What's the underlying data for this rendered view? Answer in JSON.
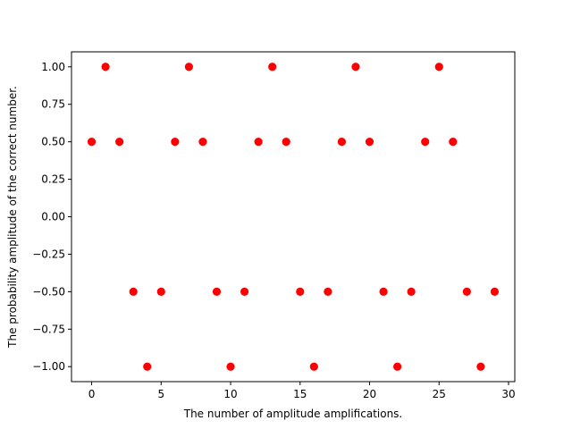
{
  "chart_data": {
    "type": "scatter",
    "title": "",
    "xlabel": "The number of amplitude amplifications.",
    "ylabel": "The probability amplitude of the correct number.",
    "xlim": [
      -1.45,
      30.45
    ],
    "ylim": [
      -1.1,
      1.1
    ],
    "x_ticks": [
      0,
      5,
      10,
      15,
      20,
      25,
      30
    ],
    "x_tick_labels": [
      "0",
      "5",
      "10",
      "15",
      "20",
      "25",
      "30"
    ],
    "y_ticks": [
      1.0,
      0.75,
      0.5,
      0.25,
      0.0,
      -0.25,
      -0.5,
      -0.75,
      -1.0
    ],
    "y_tick_labels": [
      "1.00",
      "0.75",
      "0.50",
      "0.25",
      "0.00",
      "−0.25",
      "−0.50",
      "−0.75",
      "−1.00"
    ],
    "grid": false,
    "marker_color": "#ff0000",
    "series": [
      {
        "x": [
          0,
          1,
          2,
          3,
          4,
          5,
          6,
          7,
          8,
          9,
          10,
          11,
          12,
          13,
          14,
          15,
          16,
          17,
          18,
          19,
          20,
          21,
          22,
          23,
          24,
          25,
          26,
          27,
          28,
          29
        ],
        "y": [
          0.5,
          1.0,
          0.5,
          -0.5,
          -1.0,
          -0.5,
          0.5,
          1.0,
          0.5,
          -0.5,
          -1.0,
          -0.5,
          0.5,
          1.0,
          0.5,
          -0.5,
          -1.0,
          -0.5,
          0.5,
          1.0,
          0.5,
          -0.5,
          -1.0,
          -0.5,
          0.5,
          1.0,
          0.5,
          -0.5,
          -1.0,
          -0.5
        ]
      }
    ]
  }
}
